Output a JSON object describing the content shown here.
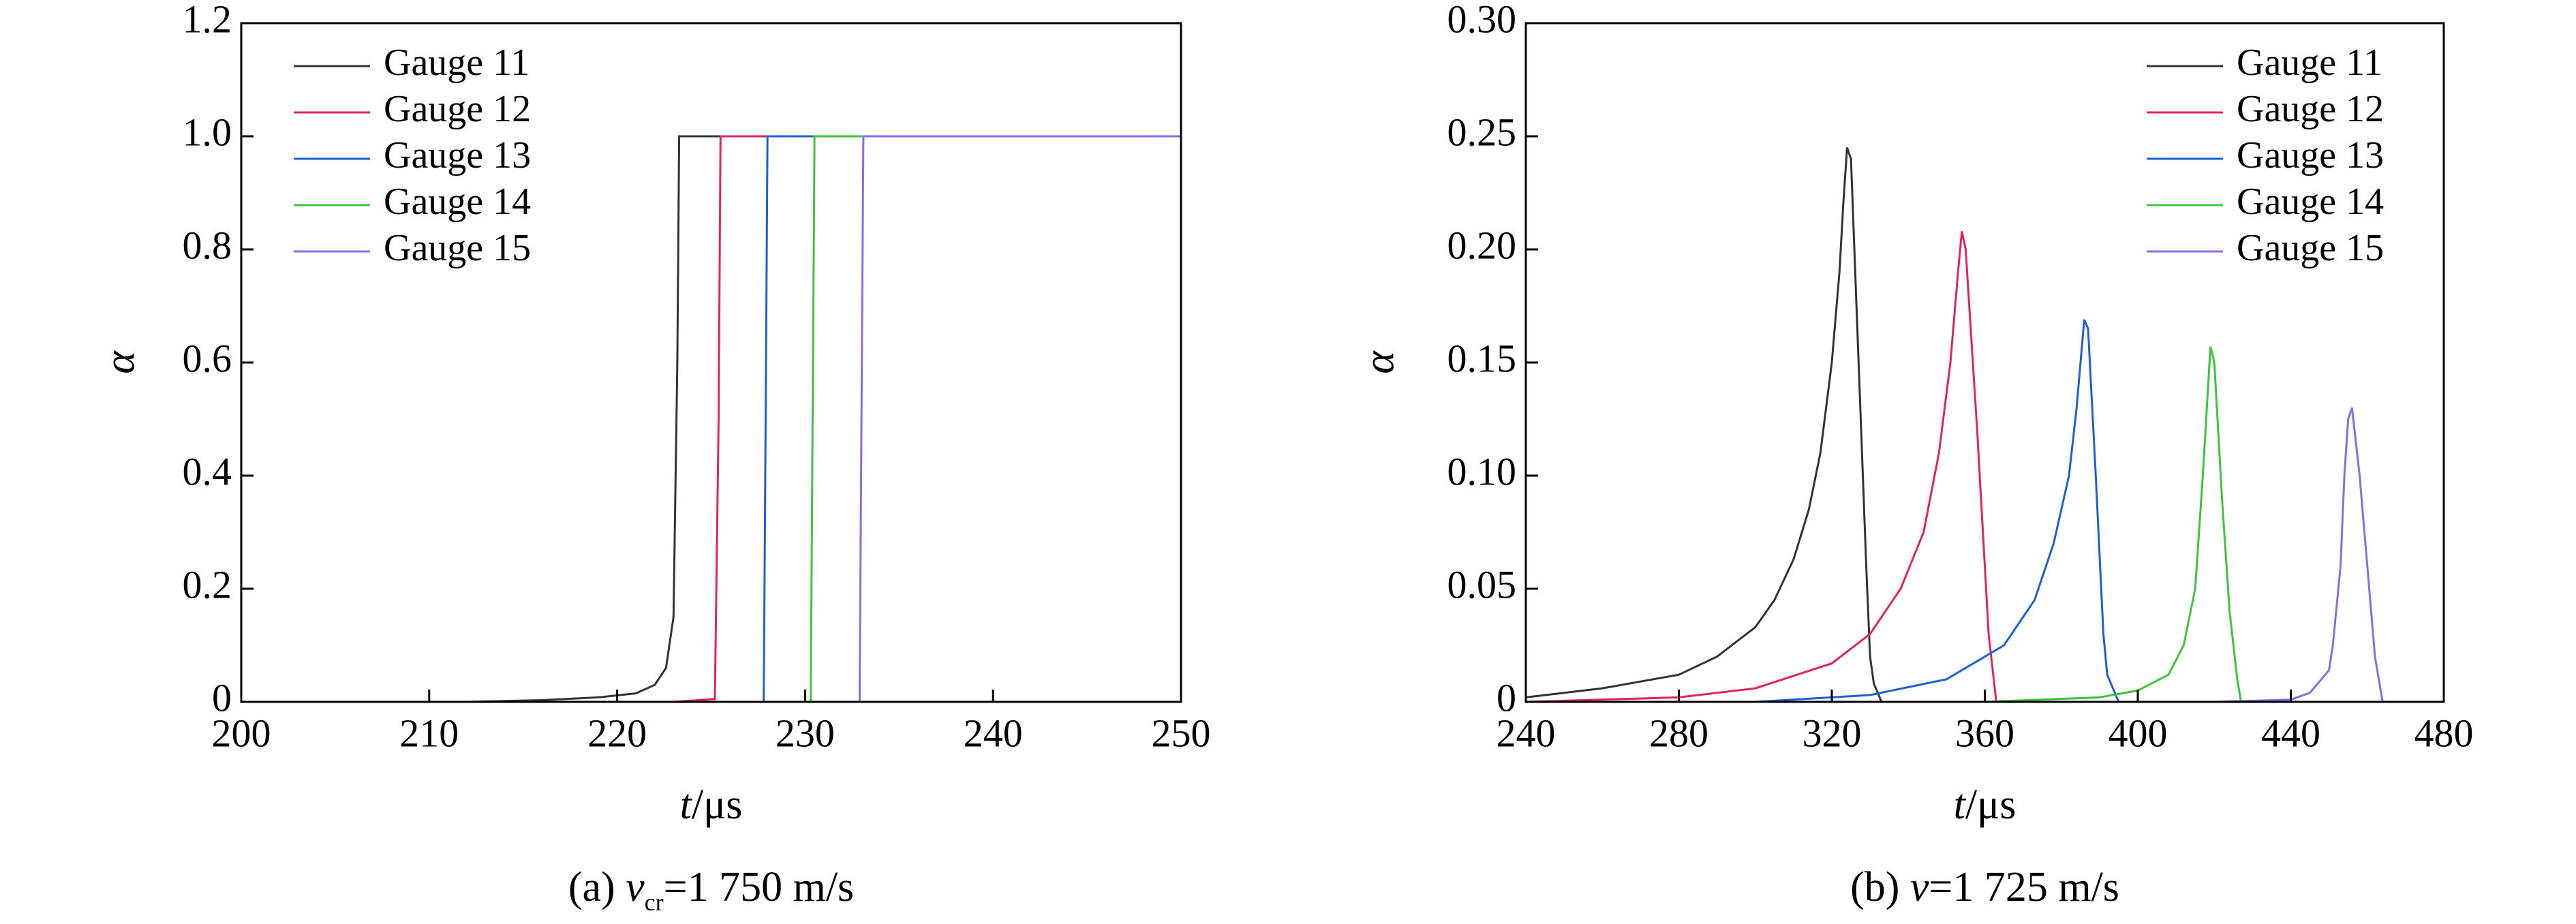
{
  "chart_data": [
    {
      "type": "line",
      "xlabel": [
        "t",
        "/μs"
      ],
      "ylabel": "α",
      "caption": [
        "(a) ",
        "v",
        "cr",
        "=1 750 m/s"
      ],
      "xlim": [
        200,
        250
      ],
      "xticks": [
        200,
        210,
        220,
        230,
        240,
        250
      ],
      "ylim": [
        0,
        1.2
      ],
      "yticks": [
        0,
        0.2,
        0.4,
        0.6,
        0.8,
        {
          "value": 1,
          "label": "1.0"
        },
        1.2
      ],
      "legend": "upper left",
      "series": [
        {
          "name": "Gauge 11",
          "color": "#333333",
          "x": [
            212,
            216,
            219,
            221,
            222,
            222.6,
            223,
            223.2,
            223.3,
            250
          ],
          "values": [
            0,
            0.003,
            0.008,
            0.015,
            0.03,
            0.06,
            0.15,
            0.6,
            1,
            1
          ]
        },
        {
          "name": "Gauge 12",
          "color": "#e0245e",
          "x": [
            223,
            225.2,
            225.4,
            225.5,
            250
          ],
          "values": [
            0,
            0.005,
            0.5,
            1,
            1
          ]
        },
        {
          "name": "Gauge 13",
          "color": "#1f5fd6",
          "x": [
            225,
            227.8,
            227.9,
            228,
            250
          ],
          "values": [
            0,
            0,
            0.5,
            1,
            1
          ]
        },
        {
          "name": "Gauge 14",
          "color": "#3dc43d",
          "x": [
            228,
            230.3,
            230.4,
            230.5,
            250
          ],
          "values": [
            0,
            0,
            0.5,
            1,
            1
          ]
        },
        {
          "name": "Gauge 15",
          "color": "#8a6be8",
          "x": [
            231,
            232.9,
            233,
            233.1,
            250
          ],
          "values": [
            0,
            0,
            0.5,
            1,
            1
          ]
        }
      ]
    },
    {
      "type": "line",
      "xlabel": [
        "t",
        "/μs"
      ],
      "ylabel": "α",
      "caption": [
        "(b) ",
        "v",
        "=1 725 m/s"
      ],
      "xlim": [
        240,
        480
      ],
      "xticks": [
        240,
        280,
        320,
        360,
        400,
        440,
        480
      ],
      "ylim": [
        0,
        0.3
      ],
      "yticks": [
        0,
        0.05,
        {
          "value": 0.1,
          "label": "0.10"
        },
        0.15,
        {
          "value": 0.2,
          "label": "0.20"
        },
        0.25,
        {
          "value": 0.3,
          "label": "0.30"
        }
      ],
      "legend": "upper right",
      "series": [
        {
          "name": "Gauge 11",
          "color": "#333333",
          "x": [
            240,
            260,
            280,
            290,
            300,
            305,
            310,
            314,
            317,
            320,
            322,
            323,
            324,
            325,
            327,
            329,
            330,
            331,
            333
          ],
          "values": [
            0.002,
            0.006,
            0.012,
            0.02,
            0.033,
            0.045,
            0.063,
            0.085,
            0.11,
            0.15,
            0.19,
            0.22,
            0.245,
            0.24,
            0.15,
            0.06,
            0.02,
            0.008,
            0
          ]
        },
        {
          "name": "Gauge 12",
          "color": "#e0245e",
          "x": [
            240,
            280,
            300,
            320,
            330,
            338,
            344,
            348,
            351,
            353,
            354,
            355,
            358,
            361,
            363
          ],
          "values": [
            0,
            0.002,
            0.006,
            0.017,
            0.03,
            0.05,
            0.075,
            0.11,
            0.15,
            0.19,
            0.208,
            0.2,
            0.12,
            0.03,
            0
          ]
        },
        {
          "name": "Gauge 13",
          "color": "#1f5fd6",
          "x": [
            300,
            330,
            350,
            365,
            373,
            378,
            382,
            384,
            386,
            387,
            389,
            391,
            392,
            395
          ],
          "values": [
            0,
            0.003,
            0.01,
            0.025,
            0.045,
            0.07,
            0.1,
            0.13,
            0.169,
            0.165,
            0.1,
            0.03,
            0.012,
            0
          ]
        },
        {
          "name": "Gauge 14",
          "color": "#3dc43d",
          "x": [
            360,
            390,
            400,
            408,
            412,
            415,
            417,
            419,
            420,
            422,
            424,
            426,
            427,
            430
          ],
          "values": [
            0,
            0.002,
            0.005,
            0.012,
            0.025,
            0.05,
            0.1,
            0.157,
            0.15,
            0.09,
            0.04,
            0.01,
            0,
            0
          ]
        },
        {
          "name": "Gauge 15",
          "color": "#8a6be8",
          "x": [
            420,
            440,
            445,
            448,
            450,
            451,
            453,
            454,
            455,
            456,
            458,
            460,
            462,
            464,
            476
          ],
          "values": [
            0,
            0.001,
            0.004,
            0.01,
            0.014,
            0.025,
            0.06,
            0.1,
            0.125,
            0.13,
            0.1,
            0.06,
            0.02,
            0,
            0
          ]
        }
      ]
    }
  ]
}
